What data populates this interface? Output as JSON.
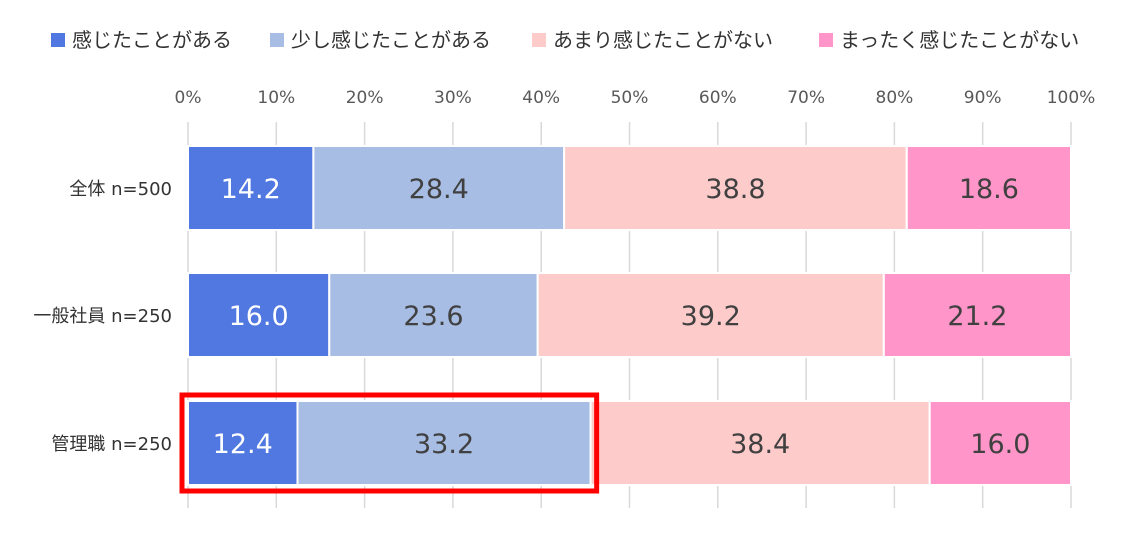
{
  "chart_data": {
    "type": "bar",
    "orientation": "horizontal",
    "stacked": true,
    "percent": true,
    "categories": [
      "全体 n=500",
      "一般社員 n=250",
      "管理職 n=250"
    ],
    "series": [
      {
        "name": "感じたことがある",
        "values": [
          14.2,
          16.0,
          12.4
        ],
        "color": "#5078e0"
      },
      {
        "name": "少し感じたことがある",
        "values": [
          28.4,
          23.6,
          33.2
        ],
        "color": "#a7bde4"
      },
      {
        "name": "あまり感じたことがない",
        "values": [
          38.8,
          39.2,
          38.4
        ],
        "color": "#fecbcb"
      },
      {
        "name": "まったく感じたことがない",
        "values": [
          18.6,
          21.2,
          16.0
        ],
        "color": "#ff95c8"
      }
    ],
    "data_labels": [
      [
        "14.2",
        "28.4",
        "38.8",
        "18.6"
      ],
      [
        "16.0",
        "23.6",
        "39.2",
        "21.2"
      ],
      [
        "12.4",
        "33.2",
        "38.4",
        "16.0"
      ]
    ],
    "x_ticks": [
      "0%",
      "10%",
      "20%",
      "30%",
      "40%",
      "50%",
      "60%",
      "70%",
      "80%",
      "90%",
      "100%"
    ],
    "xlim": [
      0,
      100
    ],
    "grid": true,
    "legend_position": "top",
    "highlight": {
      "category_index": 2,
      "series_indices": [
        0,
        1
      ],
      "color": "#ff0000"
    },
    "label_colors": [
      "#ffffff",
      "#404040",
      "#404040",
      "#404040"
    ]
  }
}
